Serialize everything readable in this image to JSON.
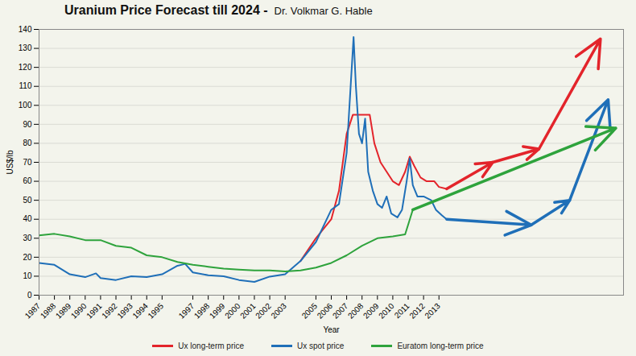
{
  "chart_data": {
    "type": "line",
    "title": "Uranium Price Forecast till 2024  -",
    "subtitle": "Dr. Volkmar G. Hable",
    "x_label": "Year",
    "y_label": "US$/lb",
    "xlim": [
      1987,
      2025
    ],
    "xticks": [
      1987,
      1988,
      1989,
      1990,
      1991,
      1992,
      1993,
      1994,
      1995,
      1997,
      1998,
      1999,
      2000,
      2001,
      2002,
      2003,
      2005,
      2006,
      2007,
      2008,
      2009,
      2010,
      2011,
      2012,
      2013
    ],
    "ylim": [
      0,
      140
    ],
    "yticks": [
      0,
      10,
      20,
      30,
      40,
      50,
      60,
      70,
      80,
      90,
      100,
      110,
      120,
      130,
      140
    ],
    "grid": "y",
    "legend": "bottom",
    "series": [
      {
        "name": "Ux long-term price",
        "color": "#e3242b",
        "x": [
          2004.0,
          2005.0,
          2006.0,
          2006.5,
          2007.0,
          2007.4,
          2008.5,
          2008.8,
          2009.2,
          2009.6,
          2010.0,
          2010.4,
          2010.8,
          2011.1,
          2011.4,
          2011.8,
          2012.2,
          2012.7,
          2013.0,
          2013.5
        ],
        "values": [
          18,
          30,
          40,
          55,
          85,
          95,
          95,
          80,
          70,
          65,
          60,
          58,
          65,
          73,
          68,
          62,
          60,
          60,
          57,
          56
        ],
        "forecast": {
          "x": [
            2013.5,
            2016.5,
            2019.5,
            2023.5
          ],
          "values": [
            56,
            70,
            77,
            135
          ]
        }
      },
      {
        "name": "Ux spot price",
        "color": "#1f6fb8",
        "x": [
          1987.0,
          1988.0,
          1989.0,
          1990.0,
          1990.7,
          1991.0,
          1992.0,
          1993.0,
          1994.0,
          1995.0,
          1996.0,
          1996.5,
          1997.0,
          1998.0,
          1999.0,
          2000.0,
          2001.0,
          2002.0,
          2003.0,
          2004.0,
          2005.0,
          2006.0,
          2006.5,
          2007.0,
          2007.45,
          2007.6,
          2007.8,
          2008.0,
          2008.2,
          2008.4,
          2008.7,
          2009.0,
          2009.3,
          2009.6,
          2009.9,
          2010.3,
          2010.6,
          2010.9,
          2011.1,
          2011.3,
          2011.6,
          2012.0,
          2012.5,
          2012.8,
          2013.2,
          2013.5
        ],
        "values": [
          17,
          16,
          11,
          9.5,
          11.5,
          9,
          8,
          10,
          9.5,
          11,
          15.5,
          16.5,
          12,
          10.5,
          10,
          8,
          7,
          9.8,
          11,
          18,
          28,
          45,
          48,
          75,
          136,
          110,
          85,
          80,
          93,
          65,
          55,
          48,
          46,
          52,
          43,
          41,
          45,
          60,
          72,
          58,
          52,
          52,
          50,
          45,
          42,
          40
        ],
        "forecast": {
          "x": [
            2013.5,
            2019,
            2021.5,
            2024
          ],
          "values": [
            40,
            37,
            50,
            103
          ]
        }
      },
      {
        "name": "Euratom long-term price",
        "color": "#2ea33c",
        "x": [
          1987,
          1988,
          1989,
          1990,
          1991,
          1992,
          1993,
          1994,
          1995,
          1996,
          1997,
          1998,
          1999,
          2000,
          2001,
          2002,
          2003,
          2004,
          2005,
          2006,
          2007,
          2008,
          2009,
          2010,
          2010.8,
          2011.3
        ],
        "values": [
          31.5,
          32.3,
          31,
          29,
          29,
          26,
          25,
          21,
          20,
          17.5,
          16,
          15,
          14,
          13.5,
          13,
          13,
          12.5,
          13,
          14.5,
          17,
          21,
          26,
          30,
          31,
          32,
          45
        ],
        "forecast": {
          "x": [
            2011.3,
            2024.5
          ],
          "values": [
            45,
            88
          ]
        }
      }
    ]
  }
}
